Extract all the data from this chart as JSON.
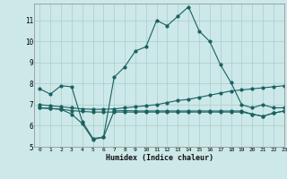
{
  "title": "",
  "xlabel": "Humidex (Indice chaleur)",
  "ylabel": "",
  "xlim": [
    -0.5,
    23
  ],
  "ylim": [
    5,
    11.8
  ],
  "yticks": [
    5,
    6,
    7,
    8,
    9,
    10,
    11
  ],
  "xticks": [
    0,
    1,
    2,
    3,
    4,
    5,
    6,
    7,
    8,
    9,
    10,
    11,
    12,
    13,
    14,
    15,
    16,
    17,
    18,
    19,
    20,
    21,
    22,
    23
  ],
  "bg_color": "#cce8e8",
  "grid_color": "#aacccc",
  "line_color": "#1a6060",
  "line1_x": [
    0,
    1,
    2,
    3,
    4,
    5,
    6,
    7,
    8,
    9,
    10,
    11,
    12,
    13,
    14,
    15,
    16,
    17,
    18,
    19,
    20,
    21,
    22,
    23
  ],
  "line1_y": [
    7.75,
    7.5,
    7.9,
    7.85,
    6.2,
    5.4,
    5.45,
    8.3,
    8.8,
    9.55,
    9.75,
    11.0,
    10.75,
    11.2,
    11.65,
    10.5,
    10.0,
    8.9,
    8.05,
    7.0,
    6.85,
    7.0,
    6.85,
    6.85
  ],
  "line2_x": [
    0,
    1,
    2,
    3,
    4,
    5,
    6,
    7,
    8,
    9,
    10,
    11,
    12,
    13,
    14,
    15,
    16,
    17,
    18,
    19,
    20,
    21,
    22,
    23
  ],
  "line2_y": [
    7.0,
    6.95,
    6.9,
    6.85,
    6.8,
    6.78,
    6.78,
    6.8,
    6.85,
    6.9,
    6.95,
    7.0,
    7.1,
    7.2,
    7.25,
    7.35,
    7.45,
    7.55,
    7.65,
    7.7,
    7.75,
    7.8,
    7.85,
    7.9
  ],
  "line3_x": [
    0,
    1,
    2,
    3,
    4,
    5,
    6,
    7,
    8,
    9,
    10,
    11,
    12,
    13,
    14,
    15,
    16,
    17,
    18,
    19,
    20,
    21,
    22,
    23
  ],
  "line3_y": [
    6.85,
    6.82,
    6.78,
    6.72,
    6.68,
    6.65,
    6.65,
    6.65,
    6.65,
    6.65,
    6.65,
    6.65,
    6.65,
    6.65,
    6.65,
    6.65,
    6.65,
    6.65,
    6.65,
    6.65,
    6.55,
    6.45,
    6.6,
    6.7
  ],
  "line4_x": [
    0,
    1,
    2,
    3,
    4,
    5,
    6,
    7,
    8,
    9,
    10,
    11,
    12,
    13,
    14,
    15,
    16,
    17,
    18,
    19,
    20,
    21,
    22,
    23
  ],
  "line4_y": [
    6.85,
    6.82,
    6.78,
    6.55,
    6.1,
    5.35,
    5.45,
    6.7,
    6.72,
    6.7,
    6.7,
    6.7,
    6.7,
    6.7,
    6.7,
    6.7,
    6.7,
    6.7,
    6.7,
    6.7,
    6.55,
    6.45,
    6.6,
    6.7
  ]
}
